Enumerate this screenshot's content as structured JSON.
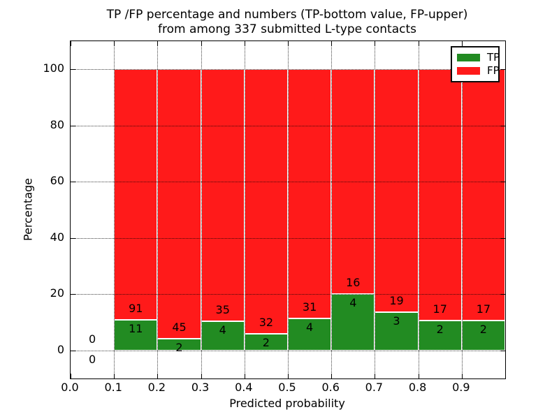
{
  "title": {
    "line1": "TP /FP percentage and numbers (TP-bottom value, FP-upper)",
    "line2": "from among 337 submitted L-type contacts"
  },
  "axes": {
    "xlabel": "Predicted probability",
    "ylabel": "Percentage",
    "xtick_labels": [
      "0.0",
      "0.1",
      "0.2",
      "0.3",
      "0.4",
      "0.5",
      "0.6",
      "0.7",
      "0.8",
      "0.9"
    ],
    "ytick_labels": [
      "0",
      "20",
      "40",
      "60",
      "80",
      "100"
    ]
  },
  "legend": {
    "items": [
      {
        "label": "TP",
        "color": "#228B22"
      },
      {
        "label": "FP",
        "color": "#FF1A1A"
      }
    ]
  },
  "chart_data": {
    "type": "bar",
    "stacked": true,
    "normalized_to_percent": true,
    "title": "TP /FP percentage and numbers (TP-bottom value, FP-upper) from among 337 submitted L-type contacts",
    "xlabel": "Predicted probability",
    "ylabel": "Percentage",
    "xlim": [
      0.0,
      1.0
    ],
    "ylim": [
      -10,
      110
    ],
    "xticks": [
      0.0,
      0.1,
      0.2,
      0.3,
      0.4,
      0.5,
      0.6,
      0.7,
      0.8,
      0.9
    ],
    "yticks": [
      0,
      20,
      40,
      60,
      80,
      100
    ],
    "grid": true,
    "grid_style": "dotted",
    "legend_position": "upper right",
    "bin_width": 0.1,
    "total_contacts": 337,
    "series": [
      {
        "name": "TP",
        "color": "#228B22",
        "position": "bottom"
      },
      {
        "name": "FP",
        "color": "#FF1A1A",
        "position": "top"
      }
    ],
    "bins": [
      {
        "x0": 0.0,
        "x1": 0.1,
        "tp": 0,
        "fp": 0
      },
      {
        "x0": 0.1,
        "x1": 0.2,
        "tp": 11,
        "fp": 91
      },
      {
        "x0": 0.2,
        "x1": 0.3,
        "tp": 2,
        "fp": 45
      },
      {
        "x0": 0.3,
        "x1": 0.4,
        "tp": 4,
        "fp": 35
      },
      {
        "x0": 0.4,
        "x1": 0.5,
        "tp": 2,
        "fp": 32
      },
      {
        "x0": 0.5,
        "x1": 0.6,
        "tp": 4,
        "fp": 31
      },
      {
        "x0": 0.6,
        "x1": 0.7,
        "tp": 4,
        "fp": 16
      },
      {
        "x0": 0.7,
        "x1": 0.8,
        "tp": 3,
        "fp": 19
      },
      {
        "x0": 0.8,
        "x1": 0.9,
        "tp": 2,
        "fp": 17
      },
      {
        "x0": 0.9,
        "x1": 1.0,
        "tp": 2,
        "fp": 17
      }
    ]
  }
}
